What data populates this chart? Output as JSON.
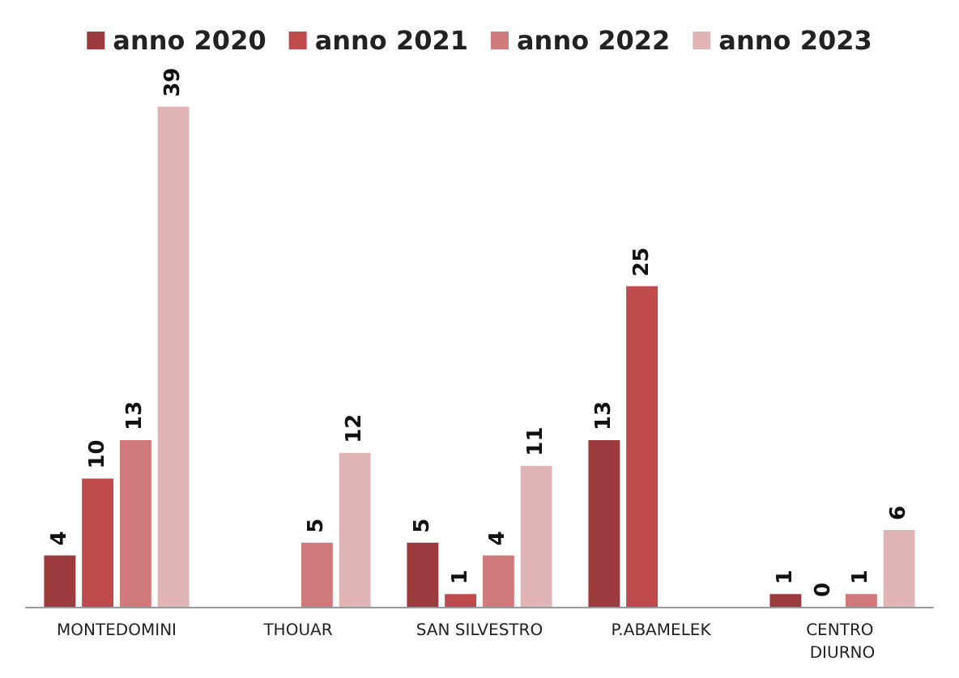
{
  "chart_data": {
    "type": "bar",
    "categories": [
      "MONTEDOMINI",
      "THOUAR",
      "SAN SILVESTRO",
      "P.ABAMELEK",
      "CENTRO DIURNO"
    ],
    "series": [
      {
        "name": "anno 2020",
        "color": "#9b3b3e",
        "values": [
          4,
          null,
          5,
          13,
          1
        ]
      },
      {
        "name": "anno 2021",
        "color": "#bf4a4c",
        "values": [
          10,
          null,
          1,
          25,
          0
        ]
      },
      {
        "name": "anno 2022",
        "color": "#d07a7b",
        "values": [
          13,
          5,
          4,
          null,
          1
        ]
      },
      {
        "name": "anno 2023",
        "color": "#e1b5b6",
        "values": [
          39,
          12,
          11,
          null,
          6
        ]
      }
    ],
    "data_labels": true,
    "legend": "top"
  }
}
